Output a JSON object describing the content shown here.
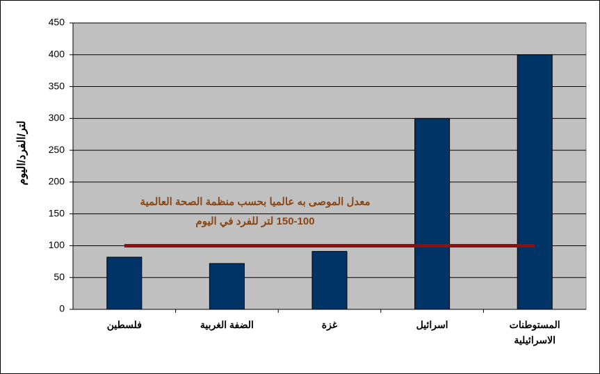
{
  "chart_data": {
    "type": "bar",
    "y_label": "لتر/الفرد/اليوم",
    "categories": [
      "فلسطين",
      "الضفة الغربية",
      "غزة",
      "اسرائيل",
      "المستوطنات\nالاسرائيلية"
    ],
    "values": [
      82,
      72,
      91,
      300,
      400
    ],
    "color": "#003366",
    "ylim": [
      0,
      450
    ],
    "yticks": [
      0,
      50,
      100,
      150,
      200,
      250,
      300,
      350,
      400,
      450
    ],
    "grid": true,
    "reference_line": {
      "value": 100,
      "color": "#8b1010"
    },
    "annotation": [
      "معدل الموصى به عالميا بحسب منظمة الصحة العالمية",
      "150-100 لتر للفرد في اليوم"
    ],
    "annotation_color": "#8b4513"
  }
}
